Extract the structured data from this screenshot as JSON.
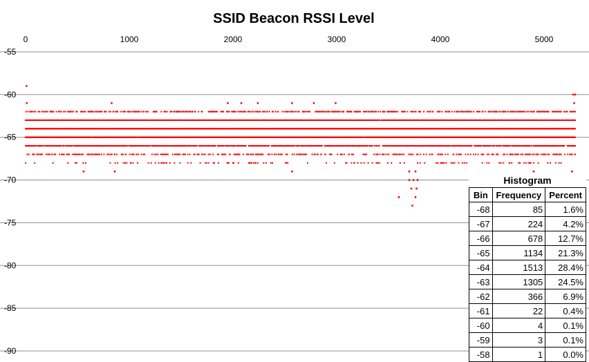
{
  "chart_data": {
    "type": "scatter",
    "title": "SSID Beacon RSSI Level",
    "xlim": [
      0,
      5300
    ],
    "ylim": [
      -90,
      -55
    ],
    "x_ticks": [
      "0",
      "1000",
      "2000",
      "3000",
      "4000",
      "5000"
    ],
    "y_ticks": [
      "-55",
      "-60",
      "-65",
      "-70",
      "-75",
      "-80",
      "-85",
      "-90"
    ],
    "x_axis_position": "top",
    "grid": "horizontal",
    "legend": "none",
    "marker_color": "#ff0000",
    "n_samples": 5335,
    "level_ranges": [
      {
        "y": -62,
        "x": [
          0,
          5300
        ],
        "density": 0.35
      },
      {
        "y": -63,
        "x": [
          0,
          5300
        ],
        "density": 0.9
      },
      {
        "y": -64,
        "x": [
          0,
          5300
        ],
        "density": 1.0
      },
      {
        "y": -65,
        "x": [
          0,
          5300
        ],
        "density": 0.95
      },
      {
        "y": -66,
        "x": [
          0,
          5300
        ],
        "density": 0.65
      },
      {
        "y": -67,
        "x": [
          0,
          5300
        ],
        "density": 0.25
      },
      {
        "y": -68,
        "x": [
          0,
          5300
        ],
        "density": 0.08
      }
    ],
    "points": [
      [
        10,
        -59
      ],
      [
        12,
        -61
      ],
      [
        830,
        -61
      ],
      [
        1950,
        -61
      ],
      [
        2080,
        -61
      ],
      [
        2240,
        -61
      ],
      [
        2570,
        -61
      ],
      [
        2780,
        -61
      ],
      [
        2990,
        -61
      ],
      [
        5280,
        -60
      ],
      [
        5300,
        -60
      ],
      [
        5290,
        -61
      ],
      [
        560,
        -69
      ],
      [
        860,
        -69
      ],
      [
        2570,
        -69
      ],
      [
        3700,
        -69
      ],
      [
        3760,
        -69
      ],
      [
        4900,
        -69
      ],
      [
        5270,
        -69
      ],
      [
        3600,
        -72
      ],
      [
        3720,
        -71
      ],
      [
        3740,
        -70
      ],
      [
        3780,
        -70
      ],
      [
        3770,
        -71
      ],
      [
        3760,
        -72
      ],
      [
        3730,
        -73
      ],
      [
        3700,
        -70
      ]
    ],
    "histogram": {
      "title": "Histogram",
      "columns": [
        "Bin",
        "Frequency",
        "Percent"
      ],
      "rows": [
        {
          "bin": "-68",
          "frequency": "85",
          "percent": "1.6%"
        },
        {
          "bin": "-67",
          "frequency": "224",
          "percent": "4.2%"
        },
        {
          "bin": "-66",
          "frequency": "678",
          "percent": "12.7%"
        },
        {
          "bin": "-65",
          "frequency": "1134",
          "percent": "21.3%"
        },
        {
          "bin": "-64",
          "frequency": "1513",
          "percent": "28.4%"
        },
        {
          "bin": "-63",
          "frequency": "1305",
          "percent": "24.5%"
        },
        {
          "bin": "-62",
          "frequency": "366",
          "percent": "6.9%"
        },
        {
          "bin": "-61",
          "frequency": "22",
          "percent": "0.4%"
        },
        {
          "bin": "-60",
          "frequency": "4",
          "percent": "0.1%"
        },
        {
          "bin": "-59",
          "frequency": "3",
          "percent": "0.1%"
        },
        {
          "bin": "-58",
          "frequency": "1",
          "percent": "0.0%"
        }
      ]
    }
  }
}
